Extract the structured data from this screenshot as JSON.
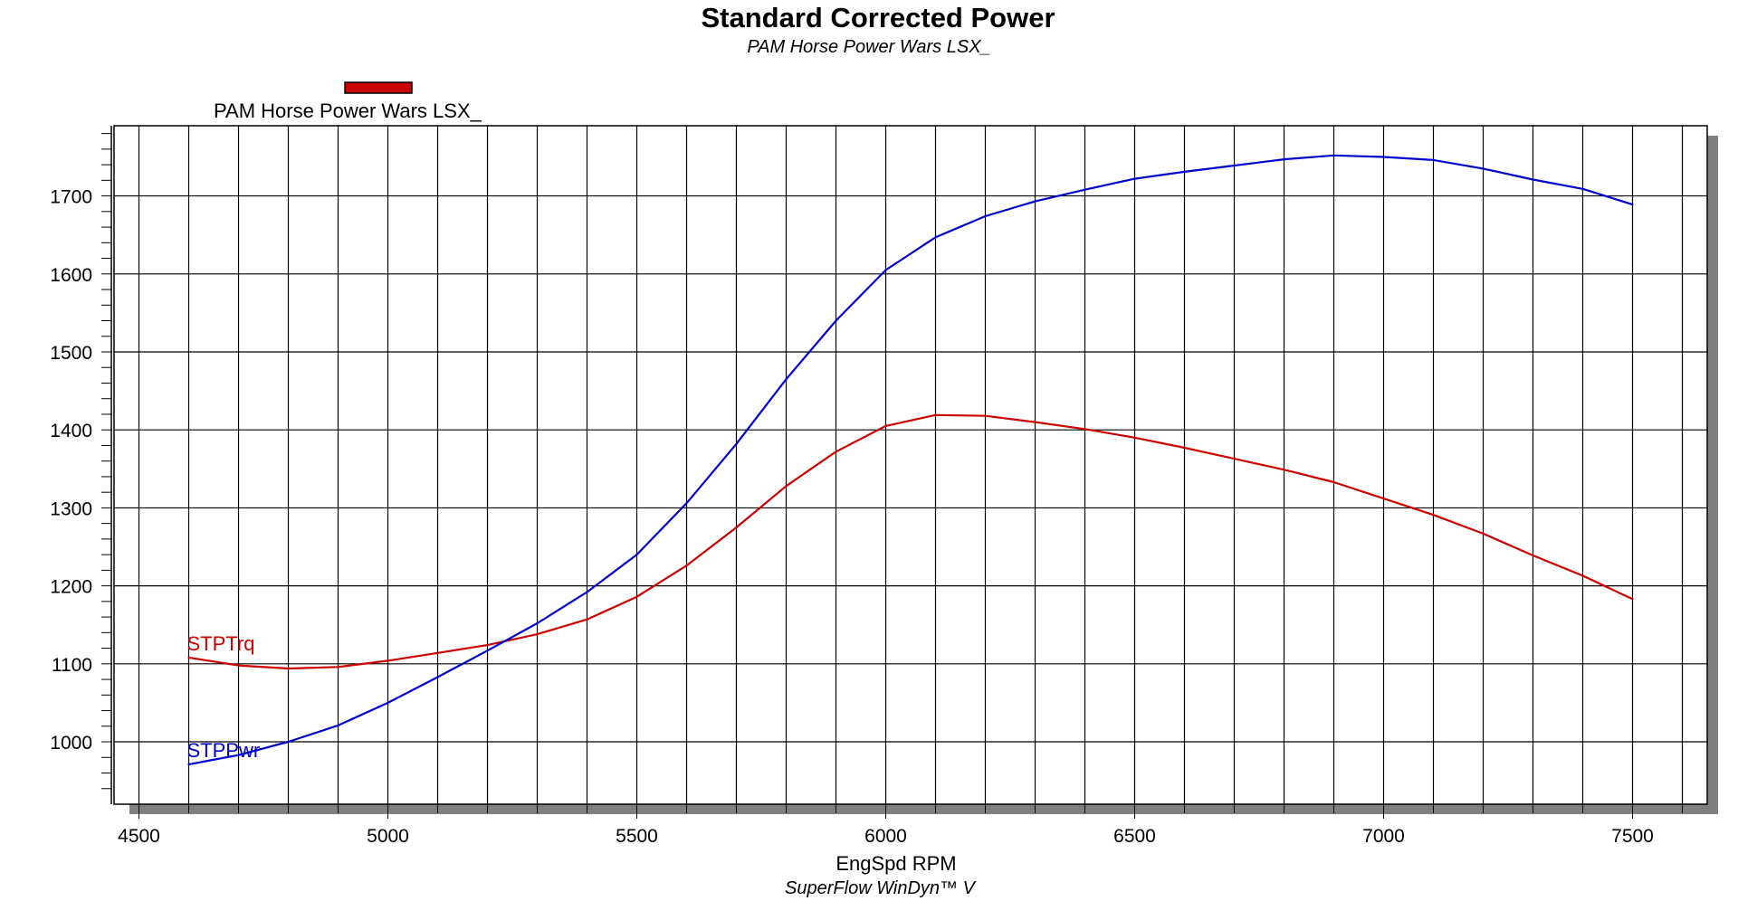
{
  "colors": {
    "torque": "#cc0000",
    "power": "#0000cc",
    "grid": "#000000",
    "shadow": "#7f7f7f"
  },
  "chart_data": {
    "type": "line",
    "title": "Standard Corrected Power",
    "subtitle": "PAM Horse Power Wars LSX_",
    "legend": {
      "label": "PAM Horse Power Wars LSX_",
      "color": "#cc0000",
      "position": "top-left"
    },
    "xlabel": "EngSpd RPM",
    "footer": "SuperFlow WinDyn™ V",
    "xlim": [
      4450,
      7650
    ],
    "ylim": [
      920,
      1790
    ],
    "x_ticks": [
      4500,
      5000,
      5500,
      6000,
      6500,
      7000,
      7500
    ],
    "y_ticks": [
      1000,
      1100,
      1200,
      1300,
      1400,
      1500,
      1600,
      1700
    ],
    "grid": true,
    "series": [
      {
        "name": "STPTrq",
        "color": "#cc0000",
        "x": [
          4600,
          4700,
          4800,
          4900,
          5000,
          5100,
          5200,
          5300,
          5400,
          5500,
          5600,
          5700,
          5800,
          5900,
          6000,
          6100,
          6200,
          6300,
          6400,
          6500,
          6600,
          6700,
          6800,
          6900,
          7000,
          7100,
          7200,
          7300,
          7400,
          7500
        ],
        "values": [
          1108,
          1098,
          1094,
          1096,
          1104,
          1114,
          1124,
          1138,
          1157,
          1186,
          1226,
          1275,
          1328,
          1372,
          1405,
          1419,
          1418,
          1410,
          1401,
          1390,
          1377,
          1363,
          1349,
          1333,
          1312,
          1291,
          1267,
          1239,
          1213,
          1183
        ]
      },
      {
        "name": "STPPwr",
        "color": "#0000cc",
        "x": [
          4600,
          4700,
          4800,
          4900,
          5000,
          5100,
          5200,
          5300,
          5400,
          5500,
          5600,
          5700,
          5800,
          5900,
          6000,
          6100,
          6200,
          6300,
          6400,
          6500,
          6600,
          6700,
          6800,
          6900,
          7000,
          7100,
          7200,
          7300,
          7400,
          7500
        ],
        "values": [
          971,
          983,
          1000,
          1021,
          1050,
          1083,
          1117,
          1152,
          1192,
          1240,
          1306,
          1382,
          1465,
          1540,
          1605,
          1647,
          1674,
          1693,
          1708,
          1722,
          1731,
          1739,
          1747,
          1752,
          1750,
          1746,
          1735,
          1721,
          1709,
          1689
        ]
      }
    ]
  }
}
